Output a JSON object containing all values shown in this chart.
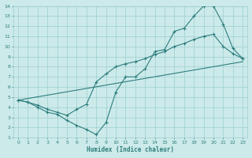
{
  "xlabel": "Humidex (Indice chaleur)",
  "xlim": [
    -0.5,
    23.5
  ],
  "ylim": [
    1,
    14
  ],
  "xticks": [
    0,
    1,
    2,
    3,
    4,
    5,
    6,
    7,
    8,
    9,
    10,
    11,
    12,
    13,
    14,
    15,
    16,
    17,
    18,
    19,
    20,
    21,
    22,
    23
  ],
  "yticks": [
    1,
    2,
    3,
    4,
    5,
    6,
    7,
    8,
    9,
    10,
    11,
    12,
    13,
    14
  ],
  "bg_color": "#cceaea",
  "grid_color": "#9ecece",
  "line_color": "#2e7d7d",
  "line1_x": [
    0,
    1,
    2,
    3,
    4,
    5,
    6,
    7,
    8,
    9,
    10,
    11,
    12,
    13,
    14,
    15,
    16,
    17,
    18,
    19,
    20,
    21,
    22,
    23
  ],
  "line1_y": [
    4.7,
    4.5,
    4.0,
    3.5,
    3.3,
    2.7,
    2.2,
    1.8,
    1.3,
    2.5,
    5.5,
    7.0,
    7.0,
    7.8,
    9.5,
    9.7,
    11.5,
    11.8,
    13.0,
    14.0,
    14.0,
    12.2,
    9.8,
    8.8
  ],
  "line2_x": [
    0,
    23
  ],
  "line2_y": [
    4.7,
    8.5
  ],
  "line3_x": [
    0,
    1,
    2,
    3,
    4,
    5,
    6,
    7,
    8,
    9,
    10,
    11,
    12,
    13,
    14,
    15,
    16,
    17,
    18,
    19,
    20,
    21,
    22,
    23
  ],
  "line3_y": [
    4.7,
    4.5,
    4.2,
    3.8,
    3.5,
    3.2,
    3.8,
    4.3,
    6.5,
    7.3,
    8.0,
    8.3,
    8.5,
    8.8,
    9.2,
    9.5,
    10.0,
    10.3,
    10.7,
    11.0,
    11.2,
    10.0,
    9.3,
    8.8
  ]
}
